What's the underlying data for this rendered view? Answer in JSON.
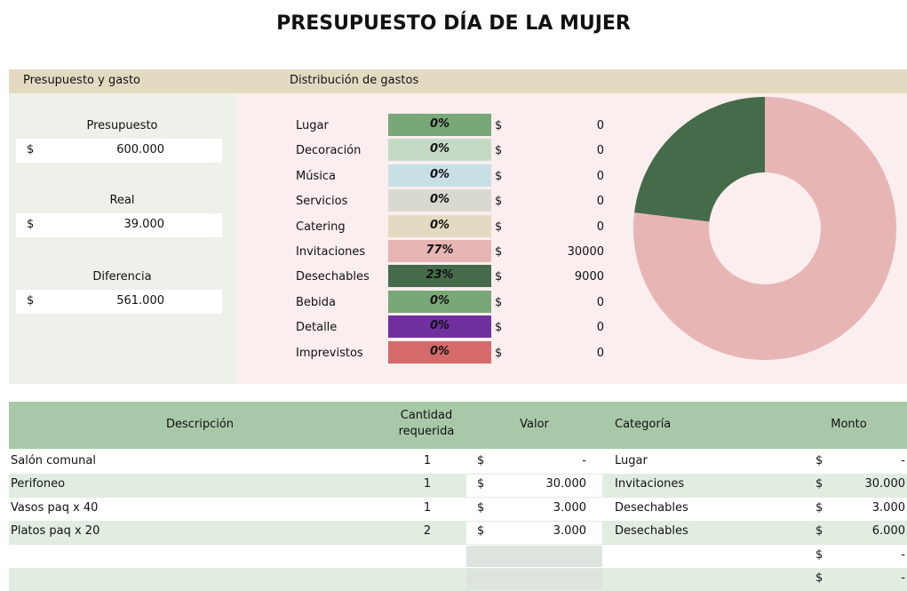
{
  "title": "PRESUPUESTO DÍA DE LA MUJER",
  "summary": {
    "header": "Presupuesto y gasto",
    "items": [
      {
        "label": "Presupuesto",
        "currency": "$",
        "amount": "600.000"
      },
      {
        "label": "Real",
        "currency": "$",
        "amount": "39.000"
      },
      {
        "label": "Diferencia",
        "currency": "$",
        "amount": "561.000"
      }
    ]
  },
  "distribution": {
    "header": "Distribución de gastos",
    "rows": [
      {
        "category": "Lugar",
        "percent": "0%",
        "currency": "$",
        "amount": 0,
        "color": "#79a878"
      },
      {
        "category": "Decoración",
        "percent": "0%",
        "currency": "$",
        "amount": 0,
        "color": "#c5dac5"
      },
      {
        "category": "Música",
        "percent": "0%",
        "currency": "$",
        "amount": 0,
        "color": "#c9dfe6"
      },
      {
        "category": "Servicios",
        "percent": "0%",
        "currency": "$",
        "amount": 0,
        "color": "#d9d9d1"
      },
      {
        "category": "Catering",
        "percent": "0%",
        "currency": "$",
        "amount": 0,
        "color": "#e3dbc1"
      },
      {
        "category": "Invitaciones",
        "percent": "77%",
        "currency": "$",
        "amount": 30000,
        "color": "#e8b5b5"
      },
      {
        "category": "Desechables",
        "percent": "23%",
        "currency": "$",
        "amount": 9000,
        "color": "#466b4a"
      },
      {
        "category": "Bebida",
        "percent": "0%",
        "currency": "$",
        "amount": 0,
        "color": "#79a878"
      },
      {
        "category": "Detalle",
        "percent": "0%",
        "currency": "$",
        "amount": 0,
        "color": "#7030a0"
      },
      {
        "category": "Imprevistos",
        "percent": "0%",
        "currency": "$",
        "amount": 0,
        "color": "#d46a6a"
      }
    ]
  },
  "table": {
    "columns": [
      "Descripción",
      "Cantidad requerida",
      "Valor",
      "Categoría",
      "Monto"
    ],
    "rows": [
      {
        "description": "Salón comunal",
        "quantity": 1,
        "currency": "$",
        "value": "-",
        "category": "Lugar",
        "currency2": "$",
        "amount": "-"
      },
      {
        "description": "Perifoneo",
        "quantity": 1,
        "currency": "$",
        "value": "30.000",
        "category": "Invitaciones",
        "currency2": "$",
        "amount": "30.000"
      },
      {
        "description": "Vasos paq x 40",
        "quantity": 1,
        "currency": "$",
        "value": "3.000",
        "category": "Desechables",
        "currency2": "$",
        "amount": "3.000"
      },
      {
        "description": "Platos paq x 20",
        "quantity": 2,
        "currency": "$",
        "value": "3.000",
        "category": "Desechables",
        "currency2": "$",
        "amount": "6.000"
      },
      {
        "currency2": "$",
        "amount": "-"
      },
      {
        "currency2": "$",
        "amount": "-"
      }
    ]
  }
}
